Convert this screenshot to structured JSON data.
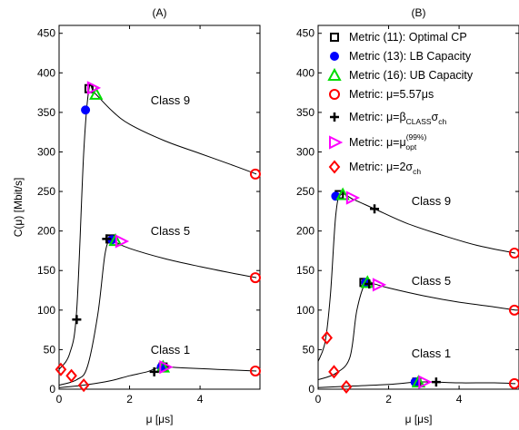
{
  "chart_data": [
    {
      "type": "line",
      "title": "(A)",
      "xlabel": "μ [μs]",
      "ylabel": "C(μ) [Mbit/s]",
      "xlim": [
        0,
        5.7
      ],
      "ylim": [
        0,
        460
      ],
      "xticks": [
        0,
        2,
        4
      ],
      "yticks": [
        0,
        50,
        100,
        150,
        200,
        250,
        300,
        350,
        400,
        450
      ],
      "grid": false,
      "curves": [
        {
          "x": [
            0,
            0.3,
            0.5,
            0.7,
            0.85,
            1.0,
            1.5,
            2.0,
            3.0,
            4.0,
            5.0,
            5.6
          ],
          "y": [
            25,
            45,
            100,
            300,
            380,
            375,
            352,
            335,
            314,
            298,
            282,
            272
          ]
        },
        {
          "x": [
            0,
            0.5,
            0.8,
            1.1,
            1.3,
            1.45,
            1.6,
            2.0,
            3.0,
            4.0,
            5.0,
            5.6
          ],
          "y": [
            5,
            12,
            28,
            95,
            170,
            190,
            186,
            178,
            165,
            155,
            146,
            141
          ]
        },
        {
          "x": [
            0,
            0.5,
            1.0,
            1.5,
            2.0,
            2.5,
            2.9,
            3.5,
            4.5,
            5.6
          ],
          "y": [
            2,
            4,
            7,
            11,
            17,
            22,
            28,
            27,
            25,
            23
          ]
        }
      ],
      "annotations": [
        {
          "text": "Class 9",
          "x": 2.6,
          "y": 360
        },
        {
          "text": "Class 5",
          "x": 2.6,
          "y": 195
        },
        {
          "text": "Class 1",
          "x": 2.6,
          "y": 45
        }
      ],
      "markers": [
        {
          "metric": "opt_cp",
          "points": [
            [
              0.85,
              380
            ],
            [
              1.45,
              190
            ],
            [
              2.95,
              28
            ]
          ]
        },
        {
          "metric": "lb",
          "points": [
            [
              0.75,
              353
            ],
            [
              1.5,
              189
            ],
            [
              2.9,
              28
            ]
          ]
        },
        {
          "metric": "ub",
          "points": [
            [
              1.05,
              373
            ],
            [
              1.6,
              188
            ],
            [
              2.95,
              28
            ]
          ]
        },
        {
          "metric": "mu557",
          "points": [
            [
              5.57,
              272
            ],
            [
              5.57,
              141
            ],
            [
              5.57,
              23
            ]
          ]
        },
        {
          "metric": "beta",
          "points": [
            [
              0.5,
              88
            ],
            [
              1.35,
              190
            ],
            [
              2.7,
              22
            ]
          ]
        },
        {
          "metric": "mu99",
          "points": [
            [
              0.95,
              381
            ],
            [
              1.75,
              187
            ],
            [
              3.0,
              28
            ]
          ]
        },
        {
          "metric": "two_sigma",
          "points": [
            [
              0.05,
              25
            ],
            [
              0.35,
              17
            ],
            [
              0.7,
              5
            ]
          ]
        }
      ]
    },
    {
      "type": "line",
      "title": "(B)",
      "xlabel": "μ [μs]",
      "ylabel": "",
      "xlim": [
        0,
        5.7
      ],
      "ylim": [
        0,
        460
      ],
      "xticks": [
        0,
        2,
        4
      ],
      "yticks": [
        0,
        50,
        100,
        150,
        200,
        250,
        300,
        350,
        400,
        450
      ],
      "grid": false,
      "curves": [
        {
          "x": [
            0,
            0.2,
            0.35,
            0.5,
            0.65,
            1.0,
            1.6,
            2.5,
            3.5,
            4.5,
            5.6
          ],
          "y": [
            35,
            60,
            120,
            220,
            246,
            240,
            228,
            210,
            195,
            182,
            172
          ]
        },
        {
          "x": [
            0,
            0.5,
            0.9,
            1.1,
            1.35,
            1.6,
            2.0,
            3.0,
            4.0,
            5.0,
            5.6
          ],
          "y": [
            12,
            20,
            40,
            100,
            135,
            133,
            128,
            118,
            110,
            104,
            100
          ]
        },
        {
          "x": [
            0,
            1.0,
            2.0,
            2.8,
            3.3,
            4.0,
            5.0,
            5.6
          ],
          "y": [
            2,
            4,
            6,
            9,
            9,
            8,
            8,
            7
          ]
        }
      ],
      "annotations": [
        {
          "text": "Class 9",
          "x": 2.65,
          "y": 233
        },
        {
          "text": "Class 5",
          "x": 2.65,
          "y": 132
        },
        {
          "text": "Class 1",
          "x": 2.65,
          "y": 40
        }
      ],
      "markers": [
        {
          "metric": "opt_cp",
          "points": [
            [
              0.6,
              246
            ],
            [
              1.3,
              135
            ],
            [
              2.8,
              9
            ]
          ]
        },
        {
          "metric": "lb",
          "points": [
            [
              0.5,
              244
            ],
            [
              1.35,
              135
            ],
            [
              2.75,
              9
            ]
          ]
        },
        {
          "metric": "ub",
          "points": [
            [
              0.7,
              246
            ],
            [
              1.4,
              135
            ],
            [
              2.85,
              9
            ]
          ]
        },
        {
          "metric": "mu557",
          "points": [
            [
              5.57,
              172
            ],
            [
              5.57,
              100
            ],
            [
              5.57,
              7
            ]
          ]
        },
        {
          "metric": "beta",
          "points": [
            [
              1.6,
              228
            ],
            [
              1.45,
              133
            ],
            [
              3.35,
              9
            ]
          ]
        },
        {
          "metric": "mu99",
          "points": [
            [
              0.95,
              242
            ],
            [
              1.7,
              132
            ],
            [
              3.0,
              9
            ]
          ]
        },
        {
          "metric": "two_sigma",
          "points": [
            [
              0.25,
              65
            ],
            [
              0.45,
              22
            ],
            [
              0.8,
              3
            ]
          ]
        }
      ],
      "legend": {
        "placement": "top-left",
        "entries": [
          {
            "metric": "opt_cp",
            "label": "Metric (11): Optimal CP"
          },
          {
            "metric": "lb",
            "label": "Metric (13): LB Capacity"
          },
          {
            "metric": "ub",
            "label": "Metric (16): UB Capacity"
          },
          {
            "metric": "mu557",
            "label": "Metric: μ=5.57μs"
          },
          {
            "metric": "beta",
            "label": "Metric: μ=β",
            "sub": "CLASS",
            "tail": "σ",
            "tail_sub": "ch"
          },
          {
            "metric": "mu99",
            "label": "Metric: μ=μ",
            "sup": "(99%)",
            "sub": "opt"
          },
          {
            "metric": "two_sigma",
            "label": "Metric: μ=2σ",
            "sub": "ch"
          }
        ]
      }
    }
  ],
  "styles": {
    "opt_cp": {
      "shape": "square",
      "color": "#000000"
    },
    "lb": {
      "shape": "dot",
      "color": "#0000ff"
    },
    "ub": {
      "shape": "triangle",
      "color": "#00dd00"
    },
    "mu557": {
      "shape": "circle",
      "color": "#ff0000"
    },
    "beta": {
      "shape": "plus",
      "color": "#000000"
    },
    "mu99": {
      "shape": "tri-right",
      "color": "#ff00ff"
    },
    "two_sigma": {
      "shape": "diamond",
      "color": "#ff0000"
    }
  }
}
